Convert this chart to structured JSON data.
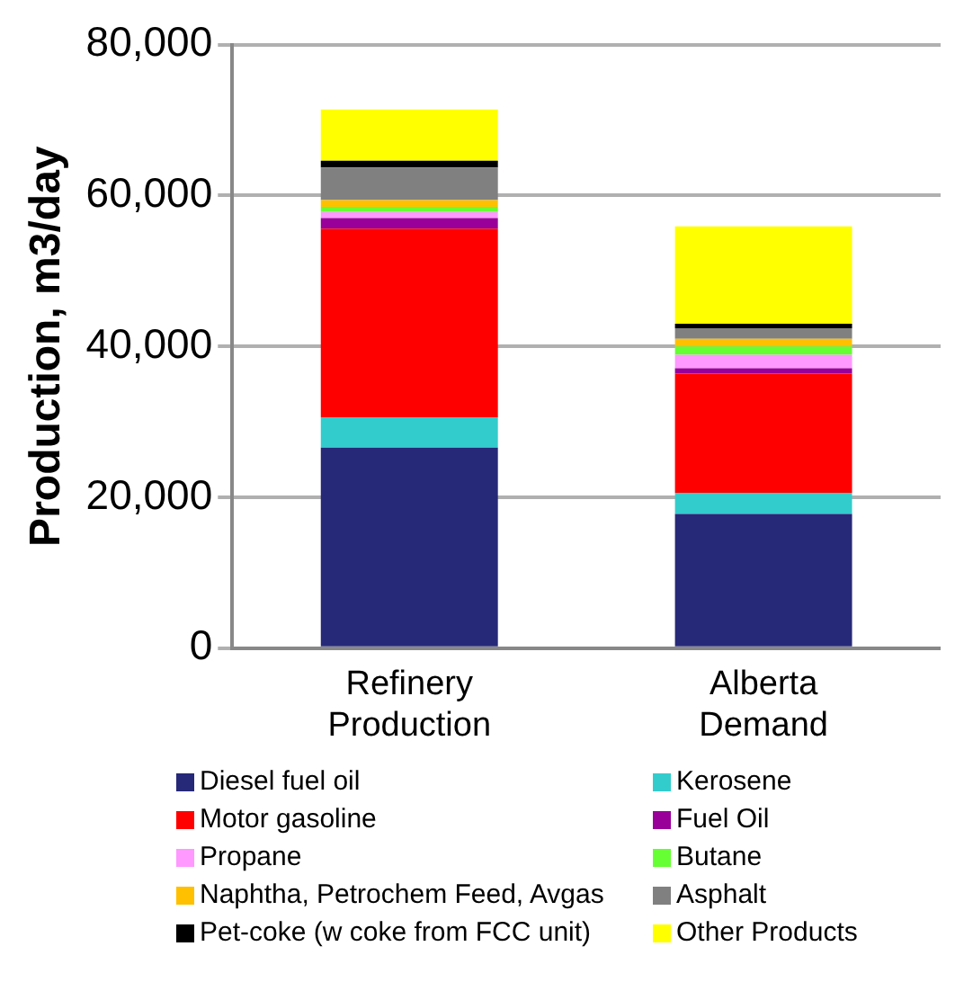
{
  "chart_data": {
    "type": "bar",
    "stacked": true,
    "ylabel": "Production, m3/day",
    "categories": [
      "Refinery Production",
      "Alberta Demand"
    ],
    "ylim": [
      0,
      80000
    ],
    "yticks": [
      {
        "value": 0,
        "label": "0"
      },
      {
        "value": 20000,
        "label": "20,000"
      },
      {
        "value": 40000,
        "label": "40,000"
      },
      {
        "value": 60000,
        "label": "60,000"
      },
      {
        "value": 80000,
        "label": "80,000"
      }
    ],
    "grid": "y",
    "legend": "bottom",
    "series": [
      {
        "name": "Diesel fuel oil",
        "color": "#262878",
        "values": [
          26600,
          17800
        ]
      },
      {
        "name": "Kerosene",
        "color": "#33cccc",
        "values": [
          4000,
          2800
        ]
      },
      {
        "name": "Motor gasoline",
        "color": "#ff0000",
        "values": [
          25000,
          15800
        ]
      },
      {
        "name": "Fuel Oil",
        "color": "#990099",
        "values": [
          1400,
          700
        ]
      },
      {
        "name": "Propane",
        "color": "#ff99ff",
        "values": [
          800,
          1800
        ]
      },
      {
        "name": "Butane",
        "color": "#66ff33",
        "values": [
          700,
          1100
        ]
      },
      {
        "name": "Naphtha, Petrochem Feed, Avgas",
        "color": "#ffc000",
        "values": [
          900,
          1000
        ]
      },
      {
        "name": "Asphalt",
        "color": "#808080",
        "values": [
          4300,
          1400
        ]
      },
      {
        "name": "Pet-coke (w coke from FCC unit)",
        "color": "#000000",
        "values": [
          900,
          600
        ]
      },
      {
        "name": "Other Products",
        "color": "#ffff00",
        "values": [
          6800,
          12900
        ]
      }
    ]
  }
}
